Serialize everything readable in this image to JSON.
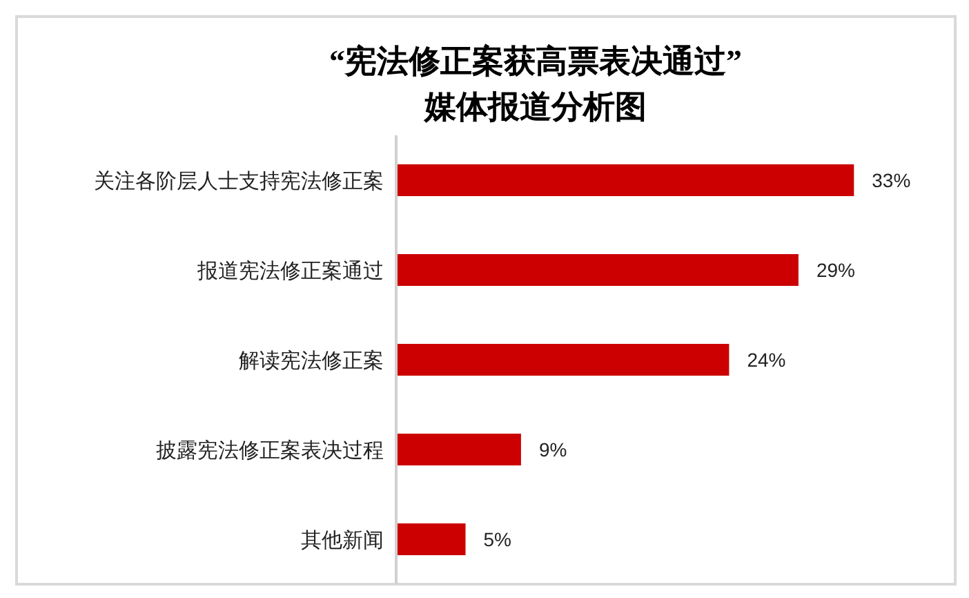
{
  "chart_data": {
    "type": "bar",
    "orientation": "horizontal",
    "title": "“宪法修正案获高票表决通过”\n媒体报道分析图",
    "categories": [
      "关注各阶层人士支持宪法修正案",
      "报道宪法修正案通过",
      "解读宪法修正案",
      "披露宪法修正案表决过程",
      "其他新闻"
    ],
    "values": [
      33,
      29,
      24,
      9,
      5
    ],
    "color": "#cc0000",
    "xlim": [
      0,
      40
    ],
    "value_labels": [
      "33%",
      "29%",
      "24%",
      "9%",
      "5%"
    ],
    "tick_labels": "y"
  }
}
